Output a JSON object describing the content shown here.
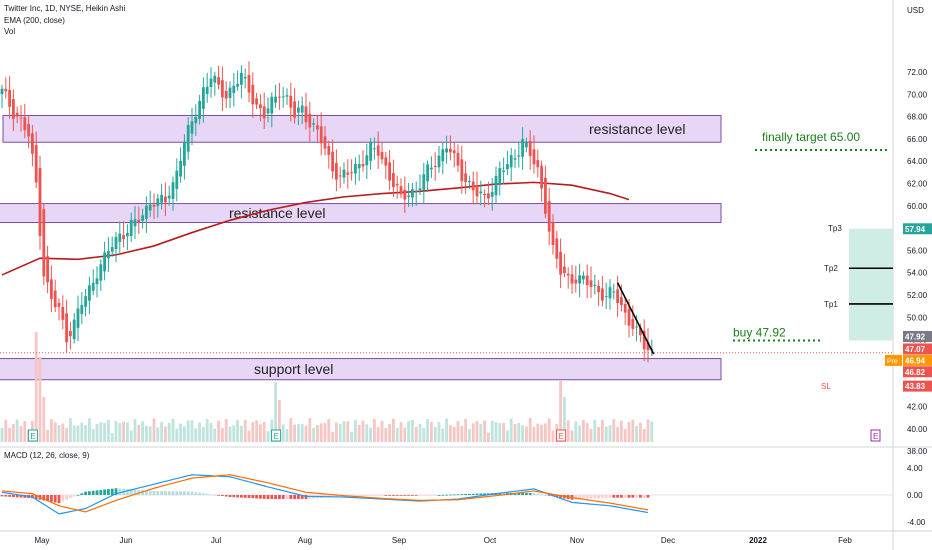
{
  "header": {
    "title_line": "Twitter Inc, 1D, NYSE, Heikin Ashi",
    "ema_line": "EMA (200, close)",
    "vol_line": "Vol",
    "macd_line": "MACD (12, 26, close, 9)",
    "currency": "USD"
  },
  "colors": {
    "up": "#26a69a",
    "down": "#ef5350",
    "ema": "#b71c1c",
    "zone_fill": "#e7d6f5",
    "zone_stroke": "#7b4fa0",
    "note_green": "#1b7d1b",
    "tp_zone": "#cfece6",
    "sl_zone": "#fbdada"
  },
  "chart_data": [
    {
      "type": "candlestick",
      "style": "Heikin Ashi",
      "timeframe": "1D",
      "ylim": [
        37,
        75
      ],
      "x_ticks": [
        "May",
        "Jun",
        "Jul",
        "Aug",
        "Sep",
        "Oct",
        "Nov",
        "Dec",
        "2022",
        "Feb"
      ],
      "y_ticks": [
        "72.00",
        "70.00",
        "68.00",
        "66.00",
        "64.00",
        "62.00",
        "60.00",
        "58.00",
        "56.00",
        "54.00",
        "52.00",
        "50.00",
        "48.00",
        "46.00",
        "44.00",
        "42.00",
        "40.00",
        "38.00"
      ],
      "close_path": [
        [
          0,
          70.2
        ],
        [
          3,
          68.5
        ],
        [
          5,
          67.6
        ],
        [
          7,
          66.2
        ],
        [
          9,
          62
        ],
        [
          11,
          54
        ],
        [
          13,
          51.5
        ],
        [
          15,
          50.6
        ],
        [
          17,
          48.3
        ],
        [
          19,
          49.5
        ],
        [
          21,
          51.2
        ],
        [
          23,
          52.5
        ],
        [
          25,
          54.2
        ],
        [
          27,
          55.2
        ],
        [
          29,
          56.5
        ],
        [
          31,
          57.5
        ],
        [
          33,
          57.8
        ],
        [
          35,
          58.4
        ],
        [
          37,
          59.2
        ],
        [
          39,
          60.5
        ],
        [
          41,
          60.2
        ],
        [
          43,
          60.5
        ],
        [
          45,
          62
        ],
        [
          47,
          64.5
        ],
        [
          49,
          66.5
        ],
        [
          51,
          68.5
        ],
        [
          53,
          70.5
        ],
        [
          55,
          71.5
        ],
        [
          57,
          70.5
        ],
        [
          59,
          70
        ],
        [
          61,
          70.8
        ],
        [
          63,
          71.5
        ],
        [
          65,
          70.5
        ],
        [
          67,
          69
        ],
        [
          69,
          68
        ],
        [
          71,
          69.2
        ],
        [
          73,
          70.5
        ],
        [
          75,
          69.5
        ],
        [
          77,
          68
        ],
        [
          79,
          68.8
        ],
        [
          81,
          67.5
        ],
        [
          83,
          66.5
        ],
        [
          85,
          65
        ],
        [
          87,
          63.5
        ],
        [
          89,
          62.5
        ],
        [
          91,
          62.8
        ],
        [
          93,
          63.5
        ],
        [
          95,
          64.2
        ],
        [
          97,
          65
        ],
        [
          99,
          64.8
        ],
        [
          101,
          63.5
        ],
        [
          103,
          62
        ],
        [
          105,
          60.5
        ],
        [
          107,
          61.2
        ],
        [
          109,
          61.5
        ],
        [
          111,
          62.5
        ],
        [
          113,
          63.5
        ],
        [
          115,
          64.5
        ],
        [
          117,
          65.5
        ],
        [
          119,
          64
        ],
        [
          121,
          62.8
        ],
        [
          123,
          62
        ],
        [
          125,
          61
        ],
        [
          127,
          60.5
        ],
        [
          129,
          61.8
        ],
        [
          131,
          63.2
        ],
        [
          133,
          63.5
        ],
        [
          135,
          64.5
        ],
        [
          137,
          66
        ],
        [
          139,
          64.5
        ],
        [
          141,
          63
        ],
        [
          143,
          60
        ],
        [
          145,
          56
        ],
        [
          147,
          54
        ],
        [
          149,
          53.5
        ],
        [
          151,
          53.6
        ],
        [
          153,
          53.2
        ],
        [
          155,
          52.8
        ],
        [
          157,
          52.5
        ],
        [
          159,
          51.8
        ],
        [
          161,
          52.2
        ],
        [
          163,
          51
        ],
        [
          165,
          49.8
        ],
        [
          167,
          48.5
        ],
        [
          169,
          47.5
        ],
        [
          171,
          47
        ]
      ],
      "ema_path": [
        [
          0,
          53.8
        ],
        [
          10,
          55.3
        ],
        [
          20,
          55.2
        ],
        [
          30,
          55.6
        ],
        [
          40,
          56.4
        ],
        [
          50,
          57.6
        ],
        [
          60,
          58.7
        ],
        [
          70,
          59.6
        ],
        [
          80,
          60.3
        ],
        [
          90,
          60.8
        ],
        [
          100,
          61.1
        ],
        [
          110,
          61.3
        ],
        [
          120,
          61.6
        ],
        [
          130,
          61.95
        ],
        [
          140,
          62.1
        ],
        [
          150,
          61.85
        ],
        [
          160,
          61.1
        ],
        [
          165,
          60.55
        ]
      ],
      "last_price": 46.82,
      "price_labels": [
        "57.94",
        "47.92",
        "47.07",
        "46.94",
        "46.82",
        "43.83"
      ],
      "pre_label": "Pre",
      "annotations": {
        "resistance_upper": "resistance level",
        "resistance_lower": "resistance level",
        "support": "support level",
        "target_note": "finally target 65.00",
        "buy_note": "buy  47.92",
        "tp3": "Tp3",
        "tp2": "Tp2",
        "tp1": "Tp1",
        "sl": "SL"
      },
      "zones": {
        "resistance_upper": [
          65.7,
          68.1
        ],
        "resistance_lower": [
          58.5,
          60.2
        ],
        "support": [
          44.4,
          46.3
        ],
        "tp_box": [
          47.92,
          57.94
        ],
        "sl_box": [
          43.83,
          47.92
        ],
        "target_line": 65.0,
        "buy_line": 47.92,
        "tp_lines": [
          54.4,
          51.2
        ]
      },
      "earnings_markers": [
        "E",
        "E",
        "E",
        "E"
      ]
    },
    {
      "type": "histogram",
      "name": "Vol",
      "note": "relative daily volume under price pane"
    },
    {
      "type": "macd",
      "name": "MACD (12, 26, close, 9)",
      "ylim": [
        -5,
        6
      ],
      "y_ticks": [
        "4.00",
        "0.00",
        "-4.00"
      ],
      "macd_path": [
        [
          0,
          0.4
        ],
        [
          8,
          -0.3
        ],
        [
          15,
          -2.8
        ],
        [
          22,
          -2
        ],
        [
          30,
          0.2
        ],
        [
          40,
          1.6
        ],
        [
          50,
          3
        ],
        [
          60,
          2.7
        ],
        [
          70,
          1.2
        ],
        [
          80,
          -0.2
        ],
        [
          90,
          -0.3
        ],
        [
          100,
          -0.6
        ],
        [
          110,
          -0.9
        ],
        [
          120,
          -0.6
        ],
        [
          130,
          0.2
        ],
        [
          140,
          0.9
        ],
        [
          150,
          -1.1
        ],
        [
          160,
          -1.6
        ],
        [
          170,
          -2.6
        ]
      ],
      "signal_path": [
        [
          0,
          0.6
        ],
        [
          8,
          0.2
        ],
        [
          15,
          -1.6
        ],
        [
          22,
          -2.5
        ],
        [
          30,
          -0.8
        ],
        [
          40,
          1
        ],
        [
          50,
          2.5
        ],
        [
          60,
          3
        ],
        [
          70,
          1.8
        ],
        [
          80,
          0.4
        ],
        [
          90,
          -0.1
        ],
        [
          100,
          -0.5
        ],
        [
          110,
          -0.8
        ],
        [
          120,
          -0.7
        ],
        [
          130,
          -0.1
        ],
        [
          140,
          0.6
        ],
        [
          150,
          -0.4
        ],
        [
          160,
          -1.2
        ],
        [
          170,
          -2.2
        ]
      ]
    }
  ]
}
